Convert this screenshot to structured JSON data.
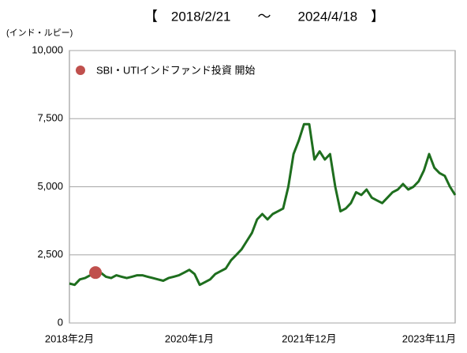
{
  "chart_data": {
    "type": "line",
    "title": "【　2018/2/21　　～　　2024/4/18　】",
    "y_label": "(インド・ルピー)",
    "annotation": {
      "text": "SBI・UTIインドファンド投資 開始",
      "color": "#c0504d",
      "at": 5
    },
    "categories": [
      "2018年2月",
      null,
      null,
      null,
      null,
      null,
      null,
      null,
      null,
      null,
      null,
      null,
      null,
      null,
      null,
      null,
      null,
      null,
      null,
      null,
      null,
      null,
      null,
      "2020年1月",
      null,
      null,
      null,
      null,
      null,
      null,
      null,
      null,
      null,
      null,
      null,
      null,
      null,
      null,
      null,
      null,
      null,
      null,
      null,
      null,
      null,
      null,
      "2021年12月",
      null,
      null,
      null,
      null,
      null,
      null,
      null,
      null,
      null,
      null,
      null,
      null,
      null,
      null,
      null,
      null,
      null,
      null,
      null,
      null,
      null,
      null,
      "2023年11月",
      null,
      null,
      null,
      null,
      null
    ],
    "series": [
      {
        "color": "#1e6e1e",
        "values": [
          1450,
          1400,
          1600,
          1650,
          1750,
          1850,
          1850,
          1700,
          1650,
          1750,
          1700,
          1650,
          1700,
          1750,
          1750,
          1700,
          1650,
          1600,
          1550,
          1650,
          1700,
          1750,
          1850,
          1950,
          1800,
          1400,
          1500,
          1600,
          1800,
          1900,
          2000,
          2300,
          2500,
          2700,
          3000,
          3300,
          3800,
          4000,
          3800,
          4000,
          4100,
          4200,
          5000,
          6200,
          6700,
          7300,
          7300,
          6000,
          6300,
          6000,
          6200,
          5000,
          4100,
          4200,
          4400,
          4800,
          4700,
          4900,
          4600,
          4500,
          4400,
          4600,
          4800,
          4900,
          5100,
          4900,
          5000,
          5200,
          5600,
          6200,
          5700,
          5500,
          5400,
          5000,
          4700
        ]
      }
    ],
    "ylim": [
      0,
      10000
    ],
    "yticks": [
      0,
      {
        "value": 2500,
        "label": "2,500"
      },
      {
        "value": 5000,
        "label": "5,000"
      },
      {
        "value": 7500,
        "label": "7,500"
      },
      {
        "value": 10000,
        "label": "10,000"
      }
    ],
    "grid": true
  }
}
